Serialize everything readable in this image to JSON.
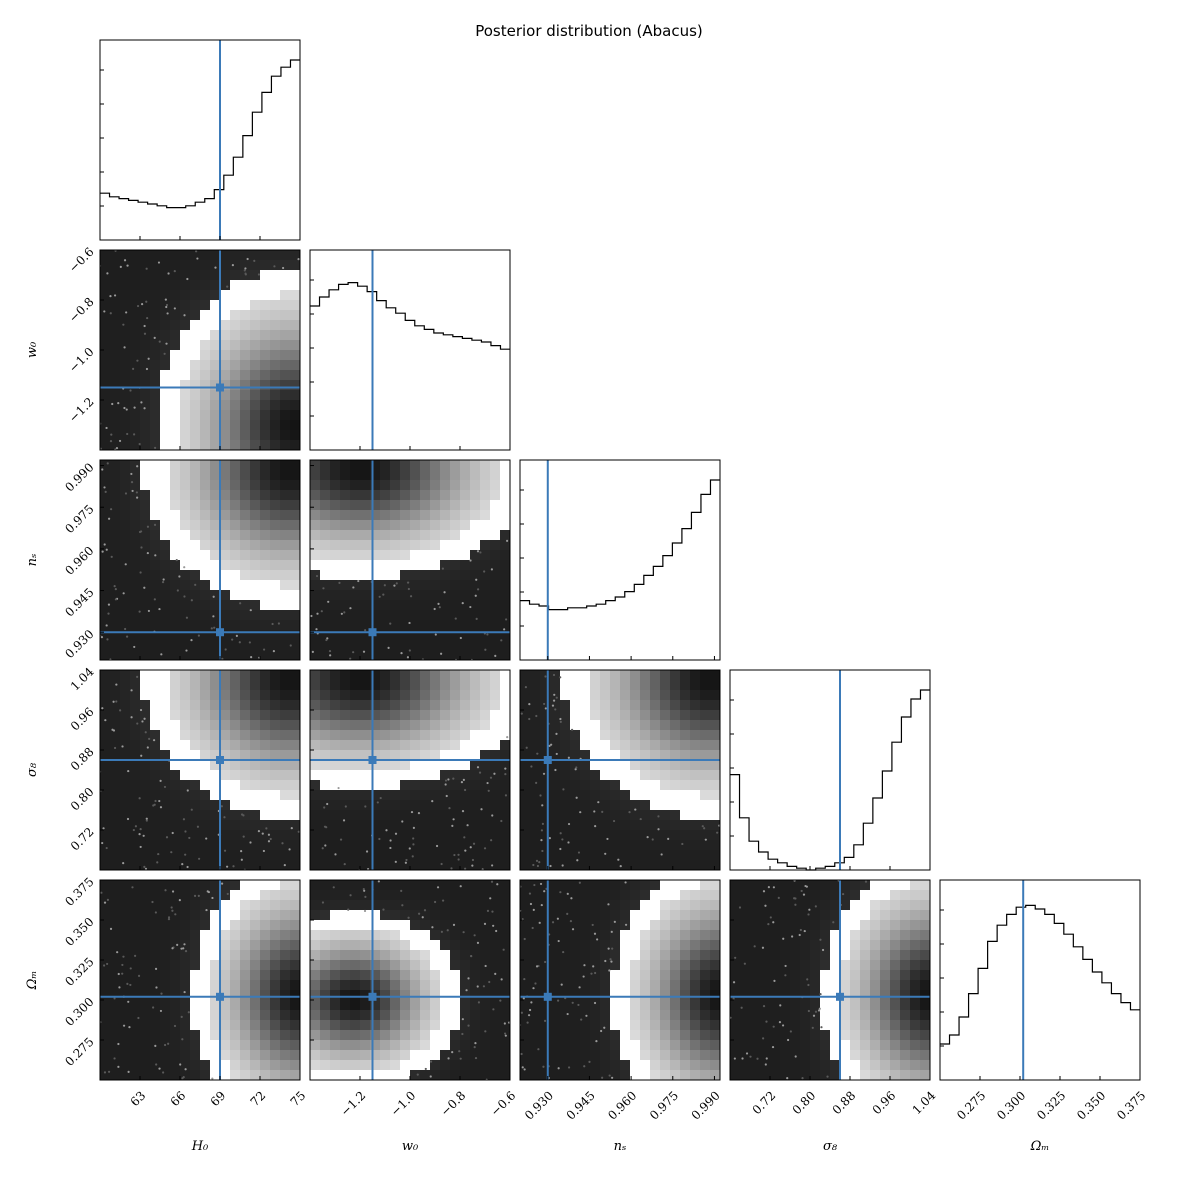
{
  "chart_data": {
    "type": "corner",
    "title": "Posterior distribution (Abacus)",
    "truth_color": "#3b7ab8",
    "params": [
      {
        "name": "H_0",
        "label": "H₀",
        "range": [
          60,
          75
        ],
        "ticks": [
          63,
          66,
          69,
          72,
          75
        ],
        "tick_labels": [
          "63",
          "66",
          "69",
          "72",
          "75"
        ],
        "truth": 69.0,
        "hist": [
          0.26,
          0.24,
          0.23,
          0.22,
          0.21,
          0.2,
          0.19,
          0.18,
          0.18,
          0.19,
          0.21,
          0.23,
          0.28,
          0.36,
          0.46,
          0.58,
          0.71,
          0.82,
          0.91,
          0.96,
          1.0
        ]
      },
      {
        "name": "w_0",
        "label": "w₀",
        "range": [
          -1.4,
          -0.6
        ],
        "ticks": [
          -1.2,
          -1.0,
          -0.8,
          -0.6
        ],
        "tick_labels": [
          "−1.2",
          "−1.0",
          "−0.8",
          "−0.6"
        ],
        "truth": -1.15,
        "hist": [
          0.8,
          0.85,
          0.89,
          0.92,
          0.93,
          0.91,
          0.88,
          0.83,
          0.79,
          0.76,
          0.72,
          0.69,
          0.67,
          0.65,
          0.64,
          0.63,
          0.62,
          0.61,
          0.6,
          0.58,
          0.56
        ]
      },
      {
        "name": "n_s",
        "label": "nₛ",
        "range": [
          0.92,
          0.992
        ],
        "ticks": [
          0.93,
          0.945,
          0.96,
          0.975,
          0.99
        ],
        "tick_labels": [
          "0.930",
          "0.945",
          "0.960",
          "0.975",
          "0.990"
        ],
        "truth": 0.93,
        "hist": [
          0.33,
          0.31,
          0.3,
          0.28,
          0.28,
          0.29,
          0.29,
          0.3,
          0.31,
          0.33,
          0.35,
          0.38,
          0.42,
          0.47,
          0.52,
          0.58,
          0.65,
          0.73,
          0.82,
          0.92,
          1.0
        ]
      },
      {
        "name": "sigma_8",
        "label": "σ₈",
        "range": [
          0.64,
          1.04
        ],
        "ticks": [
          0.72,
          0.8,
          0.88,
          0.96,
          1.04
        ],
        "tick_labels": [
          "0.72",
          "0.80",
          "0.88",
          "0.96",
          "1.04"
        ],
        "truth": 0.86,
        "hist": [
          0.53,
          0.29,
          0.16,
          0.1,
          0.06,
          0.04,
          0.02,
          0.01,
          0.0,
          0.01,
          0.02,
          0.04,
          0.07,
          0.14,
          0.26,
          0.4,
          0.55,
          0.71,
          0.85,
          0.95,
          1.0
        ]
      },
      {
        "name": "Omega_M",
        "label": "Ωₘ",
        "range": [
          0.25,
          0.375
        ],
        "ticks": [
          0.275,
          0.3,
          0.325,
          0.35,
          0.375
        ],
        "tick_labels": [
          "0.275",
          "0.300",
          "0.325",
          "0.350",
          "0.375"
        ],
        "truth": 0.302,
        "hist": [
          0.2,
          0.25,
          0.35,
          0.48,
          0.62,
          0.77,
          0.86,
          0.92,
          0.96,
          0.97,
          0.95,
          0.92,
          0.87,
          0.81,
          0.74,
          0.67,
          0.6,
          0.54,
          0.48,
          0.43,
          0.39
        ]
      }
    ],
    "density_peaks": [
      {
        "i": 1,
        "j": 0,
        "type": "corner_br"
      },
      {
        "i": 2,
        "j": 0,
        "type": "corner_tr"
      },
      {
        "i": 2,
        "j": 1,
        "type": "top_center"
      },
      {
        "i": 3,
        "j": 0,
        "type": "corner_tr"
      },
      {
        "i": 3,
        "j": 1,
        "type": "top_center"
      },
      {
        "i": 3,
        "j": 2,
        "type": "corner_tr"
      },
      {
        "i": 4,
        "j": 0,
        "type": "right_mid"
      },
      {
        "i": 4,
        "j": 1,
        "type": "center"
      },
      {
        "i": 4,
        "j": 2,
        "type": "right_mid"
      },
      {
        "i": 4,
        "j": 3,
        "type": "right_mid"
      }
    ]
  }
}
